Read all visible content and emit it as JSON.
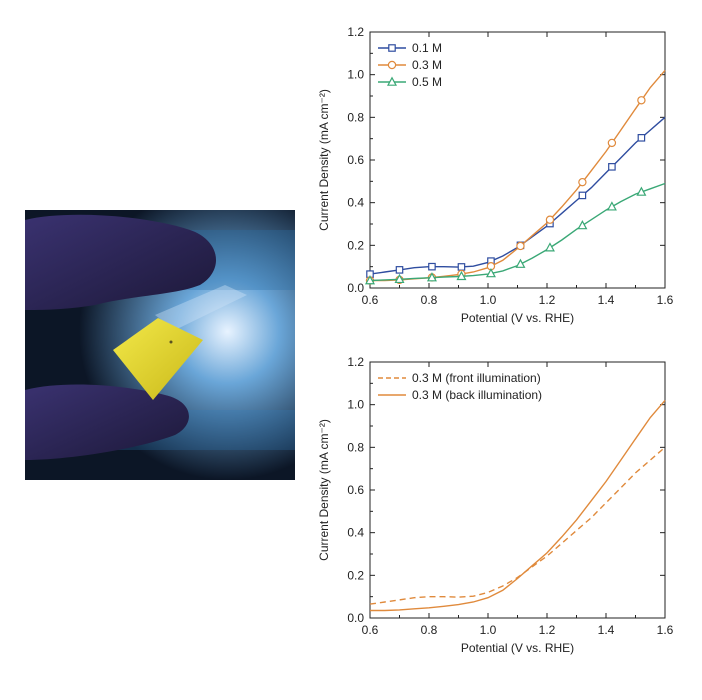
{
  "photo": {
    "description_icon": "yellow-film-sample-icon",
    "colors": {
      "glove": "#2b2550",
      "film": "#e6da2a",
      "bg": "#0f1a2a"
    }
  },
  "chart_data": [
    {
      "type": "line",
      "xlabel": "Potential (V vs. RHE)",
      "ylabel": "Current Density (mA cm⁻²)",
      "xlim": [
        0.6,
        1.6
      ],
      "ylim": [
        0.0,
        1.2
      ],
      "xticks": [
        "0.6",
        "0.8",
        "1.0",
        "1.2",
        "1.4",
        "1.6"
      ],
      "yticks": [
        "0.0",
        "0.2",
        "0.4",
        "0.6",
        "0.8",
        "1.0",
        "1.2"
      ],
      "grid": false,
      "legend_position": "top-left",
      "series": [
        {
          "name": "0.1 M",
          "color": "#2f4da0",
          "marker": "square",
          "dash": "solid",
          "x": [
            0.6,
            0.65,
            0.7,
            0.75,
            0.8,
            0.85,
            0.9,
            0.95,
            1.0,
            1.05,
            1.1,
            1.15,
            1.2,
            1.25,
            1.3,
            1.35,
            1.4,
            1.45,
            1.5,
            1.55,
            1.6
          ],
          "y": [
            0.065,
            0.075,
            0.085,
            0.095,
            0.1,
            0.1,
            0.098,
            0.102,
            0.12,
            0.15,
            0.19,
            0.24,
            0.29,
            0.35,
            0.41,
            0.47,
            0.54,
            0.61,
            0.68,
            0.74,
            0.8
          ],
          "marker_x": [
            0.6,
            0.7,
            0.81,
            0.91,
            1.01,
            1.11,
            1.21,
            1.32,
            1.42,
            1.52
          ]
        },
        {
          "name": "0.3 M",
          "color": "#e08a3c",
          "marker": "circle",
          "dash": "solid",
          "x": [
            0.6,
            0.65,
            0.7,
            0.75,
            0.8,
            0.85,
            0.9,
            0.95,
            1.0,
            1.05,
            1.1,
            1.15,
            1.2,
            1.25,
            1.3,
            1.35,
            1.4,
            1.45,
            1.5,
            1.55,
            1.6
          ],
          "y": [
            0.035,
            0.035,
            0.038,
            0.043,
            0.048,
            0.055,
            0.063,
            0.075,
            0.095,
            0.13,
            0.185,
            0.245,
            0.305,
            0.38,
            0.46,
            0.55,
            0.64,
            0.74,
            0.84,
            0.94,
            1.02
          ],
          "marker_x": [
            0.6,
            0.7,
            0.81,
            0.91,
            1.01,
            1.11,
            1.21,
            1.32,
            1.42,
            1.52
          ]
        },
        {
          "name": "0.5 M",
          "color": "#3aa876",
          "marker": "triangle",
          "dash": "solid",
          "x": [
            0.6,
            0.65,
            0.7,
            0.75,
            0.8,
            0.85,
            0.9,
            0.95,
            1.0,
            1.05,
            1.1,
            1.15,
            1.2,
            1.25,
            1.3,
            1.35,
            1.4,
            1.45,
            1.5,
            1.55,
            1.6
          ],
          "y": [
            0.035,
            0.038,
            0.041,
            0.045,
            0.048,
            0.051,
            0.054,
            0.058,
            0.065,
            0.08,
            0.105,
            0.14,
            0.18,
            0.225,
            0.275,
            0.32,
            0.365,
            0.405,
            0.44,
            0.465,
            0.49
          ],
          "marker_x": [
            0.6,
            0.7,
            0.81,
            0.91,
            1.01,
            1.11,
            1.21,
            1.32,
            1.42,
            1.52
          ]
        }
      ]
    },
    {
      "type": "line",
      "xlabel": "Potential (V vs. RHE)",
      "ylabel": "Current Density (mA cm⁻²)",
      "xlim": [
        0.6,
        1.6
      ],
      "ylim": [
        0.0,
        1.2
      ],
      "xticks": [
        "0.6",
        "0.8",
        "1.0",
        "1.2",
        "1.4",
        "1.6"
      ],
      "yticks": [
        "0.0",
        "0.2",
        "0.4",
        "0.6",
        "0.8",
        "1.0",
        "1.2"
      ],
      "grid": false,
      "legend_position": "top-left",
      "series": [
        {
          "name": "0.3 M (front illumination)",
          "color": "#e08a3c",
          "marker": "none",
          "dash": "dashed",
          "x": [
            0.6,
            0.65,
            0.7,
            0.75,
            0.8,
            0.85,
            0.9,
            0.95,
            1.0,
            1.05,
            1.1,
            1.15,
            1.2,
            1.25,
            1.3,
            1.35,
            1.4,
            1.45,
            1.5,
            1.55,
            1.6
          ],
          "y": [
            0.065,
            0.075,
            0.085,
            0.095,
            0.1,
            0.1,
            0.098,
            0.102,
            0.12,
            0.15,
            0.19,
            0.24,
            0.29,
            0.35,
            0.41,
            0.47,
            0.54,
            0.61,
            0.68,
            0.74,
            0.8
          ],
          "marker_x": []
        },
        {
          "name": "0.3 M (back illumination)",
          "color": "#e08a3c",
          "marker": "none",
          "dash": "solid",
          "x": [
            0.6,
            0.65,
            0.7,
            0.75,
            0.8,
            0.85,
            0.9,
            0.95,
            1.0,
            1.05,
            1.1,
            1.15,
            1.2,
            1.25,
            1.3,
            1.35,
            1.4,
            1.45,
            1.5,
            1.55,
            1.6
          ],
          "y": [
            0.035,
            0.035,
            0.038,
            0.043,
            0.048,
            0.055,
            0.063,
            0.075,
            0.095,
            0.13,
            0.185,
            0.245,
            0.305,
            0.38,
            0.46,
            0.55,
            0.64,
            0.74,
            0.84,
            0.94,
            1.02
          ],
          "marker_x": []
        }
      ]
    }
  ]
}
